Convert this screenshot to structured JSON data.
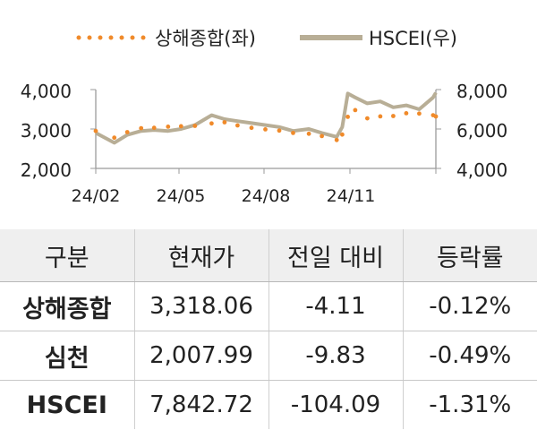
{
  "chart_data": {
    "type": "line",
    "legend_position": "top",
    "grid": false,
    "x_tick_labels": [
      "24/02",
      "24/05",
      "24/08",
      "24/11"
    ],
    "x_range": [
      "2024-01-02",
      "2025-01-03"
    ],
    "left_axis": {
      "ylim": [
        2000,
        4000
      ],
      "ticks": [
        "2,000",
        "3,000",
        "4,000"
      ]
    },
    "right_axis": {
      "ylim": [
        4000,
        8000
      ],
      "ticks": [
        "4,000",
        "6,000",
        "8,000"
      ]
    },
    "series": [
      {
        "name": "상해종합(좌)",
        "axis": "left",
        "style": "dotted",
        "color": "#f08a2a",
        "x": [
          "2024-01-02",
          "2024-01-22",
          "2024-02-05",
          "2024-02-20",
          "2024-03-05",
          "2024-03-20",
          "2024-04-03",
          "2024-04-18",
          "2024-05-06",
          "2024-05-20",
          "2024-06-03",
          "2024-06-18",
          "2024-07-03",
          "2024-07-18",
          "2024-08-02",
          "2024-08-19",
          "2024-09-02",
          "2024-09-18",
          "2024-09-24",
          "2024-09-30",
          "2024-10-08",
          "2024-10-21",
          "2024-11-04",
          "2024-11-18",
          "2024-12-02",
          "2024-12-16",
          "2024-12-31",
          "2025-01-03"
        ],
        "values": [
          2950,
          2780,
          2920,
          3020,
          3030,
          3060,
          3070,
          3080,
          3140,
          3170,
          3090,
          3030,
          2990,
          2960,
          2900,
          2880,
          2820,
          2720,
          2860,
          3310,
          3480,
          3270,
          3320,
          3330,
          3400,
          3390,
          3350,
          3318
        ]
      },
      {
        "name": "HSCEI(우)",
        "axis": "right",
        "style": "solid",
        "color": "#b8ae96",
        "x": [
          "2024-01-02",
          "2024-01-22",
          "2024-02-05",
          "2024-02-20",
          "2024-03-05",
          "2024-03-20",
          "2024-04-03",
          "2024-04-18",
          "2024-05-06",
          "2024-05-20",
          "2024-06-03",
          "2024-06-18",
          "2024-07-03",
          "2024-07-18",
          "2024-08-02",
          "2024-08-19",
          "2024-09-02",
          "2024-09-18",
          "2024-09-24",
          "2024-09-30",
          "2024-10-08",
          "2024-10-21",
          "2024-11-04",
          "2024-11-18",
          "2024-12-02",
          "2024-12-16",
          "2024-12-31",
          "2025-01-03"
        ],
        "values": [
          5800,
          5300,
          5700,
          5900,
          5950,
          5900,
          6000,
          6200,
          6700,
          6500,
          6400,
          6300,
          6200,
          6100,
          5900,
          6000,
          5800,
          5600,
          6100,
          7800,
          7600,
          7300,
          7400,
          7100,
          7200,
          7000,
          7600,
          7843
        ]
      }
    ]
  },
  "table": {
    "headers": [
      "구분",
      "현재가",
      "전일 대비",
      "등락률"
    ],
    "rows": [
      {
        "name": "상해종합",
        "price": "3,318.06",
        "change": "-4.11",
        "rate": "-0.12%"
      },
      {
        "name": "심천",
        "price": "2,007.99",
        "change": "-9.83",
        "rate": "-0.49%"
      },
      {
        "name": "HSCEI",
        "price": "7,842.72",
        "change": "-104.09",
        "rate": "-1.31%"
      }
    ]
  }
}
